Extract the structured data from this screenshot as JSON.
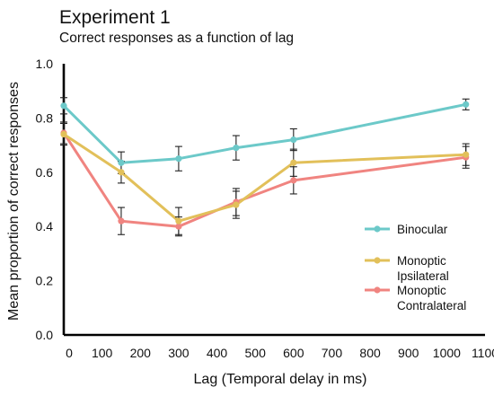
{
  "chart_data": {
    "type": "line",
    "title": "Experiment 1",
    "subtitle": "Correct responses as a function of lag",
    "xlabel": "Lag (Temporal delay in ms)",
    "ylabel": "Mean proportion of correct responses",
    "xlim": [
      0,
      1100
    ],
    "ylim": [
      0,
      1.0
    ],
    "x_ticks": [
      0,
      100,
      200,
      300,
      400,
      500,
      600,
      700,
      800,
      900,
      1000,
      1100
    ],
    "x_tick_labels": [
      "0",
      "100",
      "200",
      "300",
      "400",
      "500",
      "600",
      "700",
      "800",
      "900",
      "1000",
      "1100"
    ],
    "y_ticks": [
      0,
      0.2,
      0.4,
      0.6,
      0.8,
      1.0
    ],
    "y_tick_labels": [
      "0.0",
      "0.2",
      "0.4",
      "0.6",
      "0.8",
      "1.0"
    ],
    "grid": false,
    "legend_position": "right-bottom",
    "error_bars": true,
    "series": [
      {
        "name": "Binocular",
        "color": "#6cc9c9",
        "x": [
          0,
          150,
          300,
          450,
          600,
          1050
        ],
        "y": [
          0.845,
          0.635,
          0.65,
          0.69,
          0.72,
          0.85
        ],
        "err": [
          0.03,
          0.04,
          0.045,
          0.045,
          0.04,
          0.02
        ]
      },
      {
        "name": "Monoptic\nIpsilateral",
        "color": "#e2c05a",
        "x": [
          0,
          150,
          300,
          450,
          600,
          1050
        ],
        "y": [
          0.74,
          0.6,
          0.42,
          0.48,
          0.635,
          0.665
        ],
        "err": [
          0.04,
          0.04,
          0.05,
          0.05,
          0.05,
          0.04
        ]
      },
      {
        "name": "Monoptic\nContralateral",
        "color": "#f08480",
        "x": [
          0,
          150,
          300,
          450,
          600,
          1050
        ],
        "y": [
          0.745,
          0.42,
          0.4,
          0.49,
          0.57,
          0.655
        ],
        "err": [
          0.04,
          0.05,
          0.035,
          0.05,
          0.05,
          0.04
        ]
      }
    ]
  }
}
